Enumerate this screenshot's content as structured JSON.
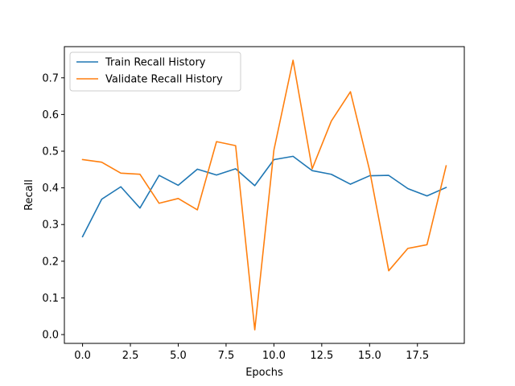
{
  "chart_data": {
    "type": "line",
    "title": "",
    "xlabel": "Epochs",
    "ylabel": "Recall",
    "xlim": [
      -0.95,
      19.95
    ],
    "ylim": [
      -0.024,
      0.785
    ],
    "x_ticks": [
      0.0,
      2.5,
      5.0,
      7.5,
      10.0,
      12.5,
      15.0,
      17.5
    ],
    "x_tick_labels": [
      "0.0",
      "2.5",
      "5.0",
      "7.5",
      "10.0",
      "12.5",
      "15.0",
      "17.5"
    ],
    "y_ticks": [
      0.0,
      0.1,
      0.2,
      0.3,
      0.4,
      0.5,
      0.6,
      0.7
    ],
    "y_tick_labels": [
      "0.0",
      "0.1",
      "0.2",
      "0.3",
      "0.4",
      "0.5",
      "0.6",
      "0.7"
    ],
    "grid": false,
    "legend_position": "upper-left",
    "x": [
      0,
      1,
      2,
      3,
      4,
      5,
      6,
      7,
      8,
      9,
      10,
      11,
      12,
      13,
      14,
      15,
      16,
      17,
      18,
      19
    ],
    "series": [
      {
        "name": "Train Recall History",
        "color": "#1f77b4",
        "values": [
          0.267,
          0.369,
          0.403,
          0.345,
          0.434,
          0.407,
          0.451,
          0.435,
          0.452,
          0.406,
          0.477,
          0.486,
          0.447,
          0.437,
          0.41,
          0.433,
          0.434,
          0.398,
          0.378,
          0.401
        ]
      },
      {
        "name": "Validate Recall History",
        "color": "#ff7f0e",
        "values": [
          0.477,
          0.47,
          0.44,
          0.437,
          0.358,
          0.371,
          0.34,
          0.526,
          0.515,
          0.013,
          0.503,
          0.748,
          0.452,
          0.582,
          0.662,
          0.448,
          0.174,
          0.235,
          0.245,
          0.46
        ]
      }
    ]
  }
}
